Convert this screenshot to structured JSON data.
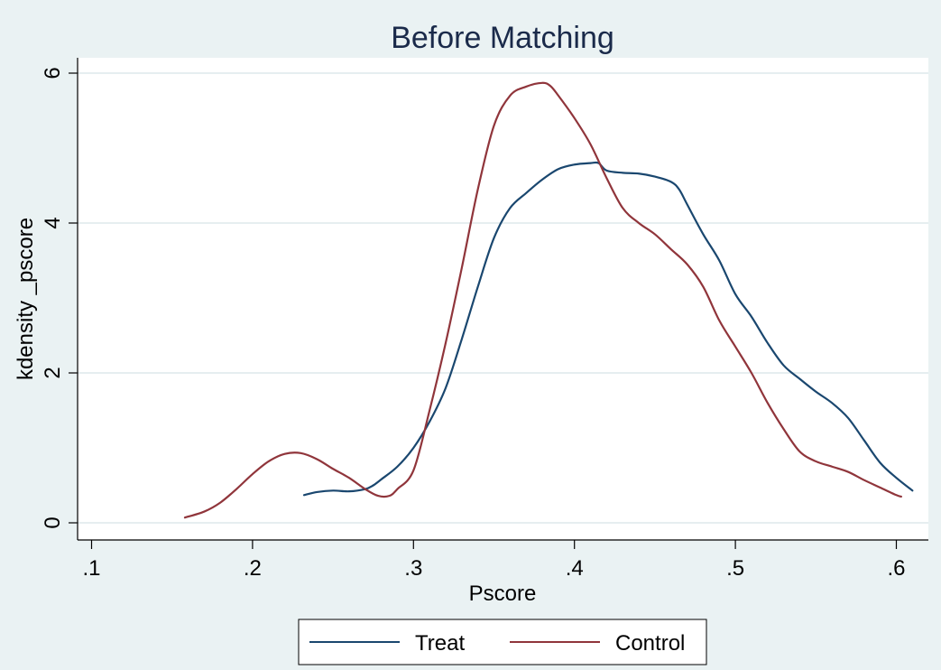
{
  "chart_data": {
    "type": "line",
    "title": "Before Matching",
    "xlabel": "Pscore",
    "ylabel": "kdensity _pscore",
    "xlim": [
      0.1,
      0.615
    ],
    "ylim": [
      0,
      6
    ],
    "x_ticks": [
      {
        "value": 0.1,
        "label": ".1"
      },
      {
        "value": 0.2,
        "label": ".2"
      },
      {
        "value": 0.3,
        "label": ".3"
      },
      {
        "value": 0.4,
        "label": ".4"
      },
      {
        "value": 0.5,
        "label": ".5"
      },
      {
        "value": 0.6,
        "label": ".6"
      }
    ],
    "y_ticks": [
      {
        "value": 0,
        "label": "0"
      },
      {
        "value": 2,
        "label": "2"
      },
      {
        "value": 4,
        "label": "4"
      },
      {
        "value": 6,
        "label": "6"
      }
    ],
    "grid": "horizontal",
    "legend": "bottom",
    "series": [
      {
        "name": "Treat",
        "color": "#1a476f",
        "points": [
          [
            0.232,
            0.37
          ],
          [
            0.24,
            0.41
          ],
          [
            0.25,
            0.43
          ],
          [
            0.26,
            0.42
          ],
          [
            0.27,
            0.45
          ],
          [
            0.275,
            0.5
          ],
          [
            0.28,
            0.58
          ],
          [
            0.29,
            0.75
          ],
          [
            0.3,
            1.0
          ],
          [
            0.31,
            1.35
          ],
          [
            0.32,
            1.8
          ],
          [
            0.33,
            2.45
          ],
          [
            0.34,
            3.15
          ],
          [
            0.35,
            3.8
          ],
          [
            0.36,
            4.2
          ],
          [
            0.37,
            4.4
          ],
          [
            0.38,
            4.58
          ],
          [
            0.39,
            4.72
          ],
          [
            0.4,
            4.78
          ],
          [
            0.41,
            4.8
          ],
          [
            0.415,
            4.8
          ],
          [
            0.42,
            4.7
          ],
          [
            0.43,
            4.67
          ],
          [
            0.44,
            4.66
          ],
          [
            0.45,
            4.62
          ],
          [
            0.46,
            4.55
          ],
          [
            0.465,
            4.45
          ],
          [
            0.47,
            4.25
          ],
          [
            0.48,
            3.85
          ],
          [
            0.49,
            3.5
          ],
          [
            0.5,
            3.05
          ],
          [
            0.51,
            2.75
          ],
          [
            0.52,
            2.4
          ],
          [
            0.53,
            2.1
          ],
          [
            0.54,
            1.92
          ],
          [
            0.55,
            1.75
          ],
          [
            0.56,
            1.6
          ],
          [
            0.57,
            1.4
          ],
          [
            0.58,
            1.1
          ],
          [
            0.59,
            0.8
          ],
          [
            0.6,
            0.6
          ],
          [
            0.61,
            0.43
          ]
        ]
      },
      {
        "name": "Control",
        "color": "#90353b",
        "points": [
          [
            0.158,
            0.07
          ],
          [
            0.17,
            0.15
          ],
          [
            0.18,
            0.27
          ],
          [
            0.19,
            0.45
          ],
          [
            0.2,
            0.65
          ],
          [
            0.21,
            0.82
          ],
          [
            0.22,
            0.92
          ],
          [
            0.23,
            0.93
          ],
          [
            0.24,
            0.85
          ],
          [
            0.25,
            0.72
          ],
          [
            0.26,
            0.6
          ],
          [
            0.27,
            0.45
          ],
          [
            0.278,
            0.36
          ],
          [
            0.285,
            0.36
          ],
          [
            0.29,
            0.45
          ],
          [
            0.3,
            0.7
          ],
          [
            0.31,
            1.5
          ],
          [
            0.32,
            2.4
          ],
          [
            0.33,
            3.4
          ],
          [
            0.34,
            4.45
          ],
          [
            0.35,
            5.3
          ],
          [
            0.36,
            5.7
          ],
          [
            0.37,
            5.82
          ],
          [
            0.38,
            5.87
          ],
          [
            0.385,
            5.83
          ],
          [
            0.39,
            5.7
          ],
          [
            0.4,
            5.4
          ],
          [
            0.41,
            5.05
          ],
          [
            0.42,
            4.6
          ],
          [
            0.43,
            4.2
          ],
          [
            0.44,
            4.0
          ],
          [
            0.45,
            3.85
          ],
          [
            0.46,
            3.65
          ],
          [
            0.47,
            3.45
          ],
          [
            0.48,
            3.15
          ],
          [
            0.49,
            2.7
          ],
          [
            0.5,
            2.35
          ],
          [
            0.51,
            2.0
          ],
          [
            0.52,
            1.6
          ],
          [
            0.53,
            1.25
          ],
          [
            0.54,
            0.95
          ],
          [
            0.55,
            0.82
          ],
          [
            0.56,
            0.75
          ],
          [
            0.57,
            0.68
          ],
          [
            0.58,
            0.57
          ],
          [
            0.59,
            0.47
          ],
          [
            0.6,
            0.37
          ],
          [
            0.603,
            0.35
          ]
        ]
      }
    ]
  }
}
